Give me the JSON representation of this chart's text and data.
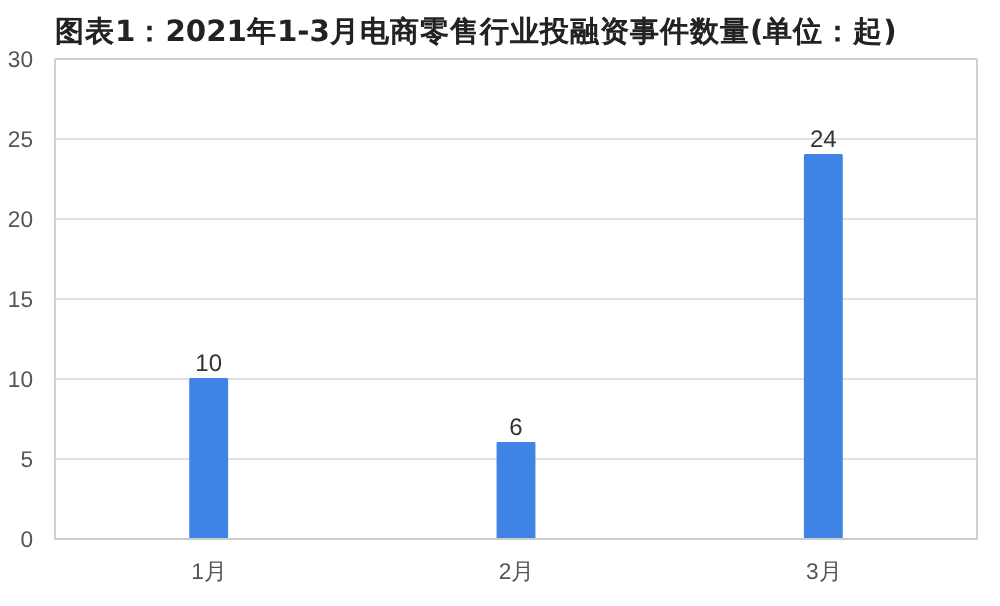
{
  "chart_data": {
    "type": "bar",
    "title": "图表1：2021年1-3月电商零售行业投融资事件数量(单位：起)",
    "categories": [
      "1月",
      "2月",
      "3月"
    ],
    "values": [
      10,
      6,
      24
    ],
    "color": "#3f84e5",
    "ylim": [
      0,
      30
    ],
    "yticks": [
      0,
      5,
      10,
      15,
      20,
      25,
      30
    ],
    "grid": "y",
    "data_labels": true
  }
}
